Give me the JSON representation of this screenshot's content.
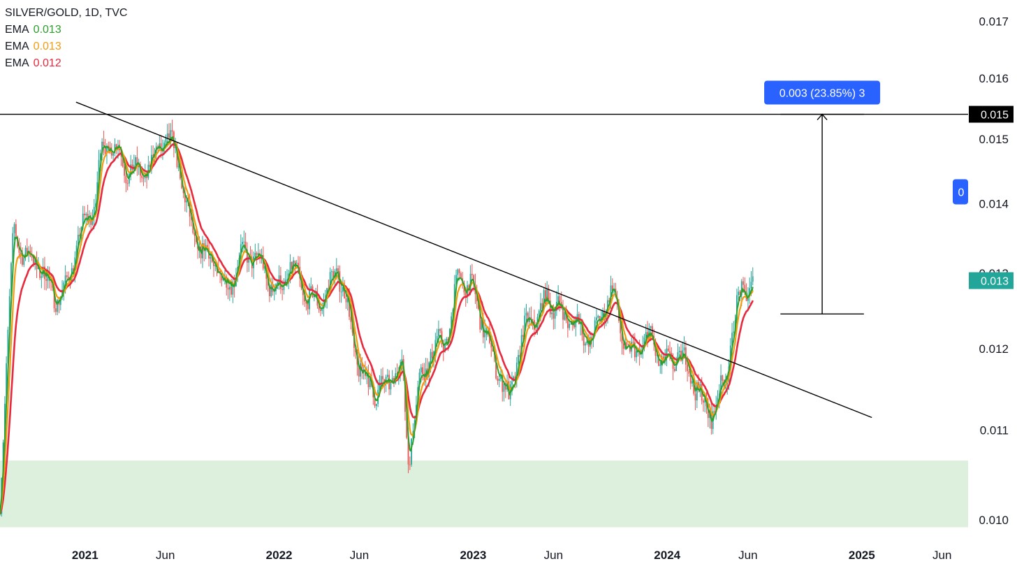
{
  "legend": {
    "title": "SILVER/GOLD, 1D, TVC",
    "indicators": [
      {
        "label": "EMA",
        "value": "0.013",
        "color": "#2ca02c"
      },
      {
        "label": "EMA",
        "value": "0.013",
        "color": "#f39c12"
      },
      {
        "label": "EMA",
        "value": "0.012",
        "color": "#e8283c"
      }
    ]
  },
  "measure_label": "0.003 (23.85%) 3",
  "price_badges": {
    "resistance": "0.015",
    "current": "0.013",
    "partial": "0"
  },
  "colors": {
    "up": "#26a69a",
    "down": "#ef5350",
    "ema_fast": "#2ca02c",
    "ema_mid": "#f39c12",
    "ema_slow": "#e8283c",
    "zone": "#ddf0dd",
    "measure_blue": "#2962ff",
    "current_badge": "#22a69a"
  },
  "chart_data": {
    "type": "line",
    "title": "SILVER/GOLD, 1D, TVC",
    "y_ticks": [
      "0.017",
      "0.016",
      "0.015",
      "0.014",
      "0.013",
      "0.012",
      "0.011",
      "0.010"
    ],
    "x_ticks": [
      "2021",
      "Jun",
      "2022",
      "Jun",
      "2023",
      "Jun",
      "2024",
      "Jun",
      "2025",
      "Jun"
    ],
    "xlim": [
      "2020-07-25",
      "2025-07-20"
    ],
    "ylim": [
      0.00988,
      0.0172
    ],
    "log_scale": true,
    "price_series": {
      "name": "SILVER/GOLD",
      "x": [
        "2020-07-25",
        "2020-08-20",
        "2020-09-20",
        "2020-10-20",
        "2020-11-25",
        "2020-12-25",
        "2021-01-20",
        "2021-02-01",
        "2021-02-20",
        "2021-03-20",
        "2021-04-20",
        "2021-05-20",
        "2021-06-20",
        "2021-07-20",
        "2021-08-20",
        "2021-09-20",
        "2021-10-20",
        "2021-11-20",
        "2021-12-20",
        "2022-01-20",
        "2022-02-20",
        "2022-03-20",
        "2022-04-20",
        "2022-05-20",
        "2022-06-20",
        "2022-07-20",
        "2022-08-20",
        "2022-09-01",
        "2022-09-20",
        "2022-10-20",
        "2022-11-20",
        "2022-12-01",
        "2022-12-20",
        "2023-01-20",
        "2023-02-20",
        "2023-03-10",
        "2023-04-20",
        "2023-05-20",
        "2023-06-20",
        "2023-07-20",
        "2023-08-20",
        "2023-09-20",
        "2023-10-20",
        "2023-11-20",
        "2023-12-20",
        "2024-01-20",
        "2024-02-20",
        "2024-03-10",
        "2024-04-20",
        "2024-05-20",
        "2024-06-10"
      ],
      "values": [
        0.0101,
        0.0138,
        0.0131,
        0.0128,
        0.0129,
        0.0134,
        0.014,
        0.0151,
        0.015,
        0.0143,
        0.0146,
        0.0149,
        0.0147,
        0.0138,
        0.0131,
        0.0128,
        0.0134,
        0.013,
        0.0129,
        0.0131,
        0.0125,
        0.0128,
        0.013,
        0.012,
        0.0117,
        0.0113,
        0.0118,
        0.0109,
        0.0116,
        0.0118,
        0.0124,
        0.0132,
        0.0128,
        0.0122,
        0.0119,
        0.0113,
        0.0124,
        0.0128,
        0.0122,
        0.0124,
        0.0122,
        0.0126,
        0.0121,
        0.012,
        0.0118,
        0.0121,
        0.0114,
        0.0112,
        0.0117,
        0.0126,
        0.0129
      ]
    },
    "ema_series": [
      {
        "name": "EMA",
        "value": 0.013,
        "color": "#2ca02c"
      },
      {
        "name": "EMA",
        "value": 0.013,
        "color": "#f39c12"
      },
      {
        "name": "EMA",
        "value": 0.012,
        "color": "#e8283c"
      }
    ],
    "annotations": {
      "resistance_level": 0.0154,
      "trendline": {
        "from": [
          "2020-12-15",
          0.0156
        ],
        "to": [
          "2025-01-20",
          0.01115
        ]
      },
      "measure": {
        "from_date": "2024-08-01",
        "to_date": "2025-01-05",
        "from": 0.01245,
        "to": 0.0154,
        "label": "0.003 (23.85%) 3"
      },
      "support_zone": [
        0.00992,
        0.01065
      ]
    },
    "grid": false,
    "legend_position": "top-left"
  }
}
